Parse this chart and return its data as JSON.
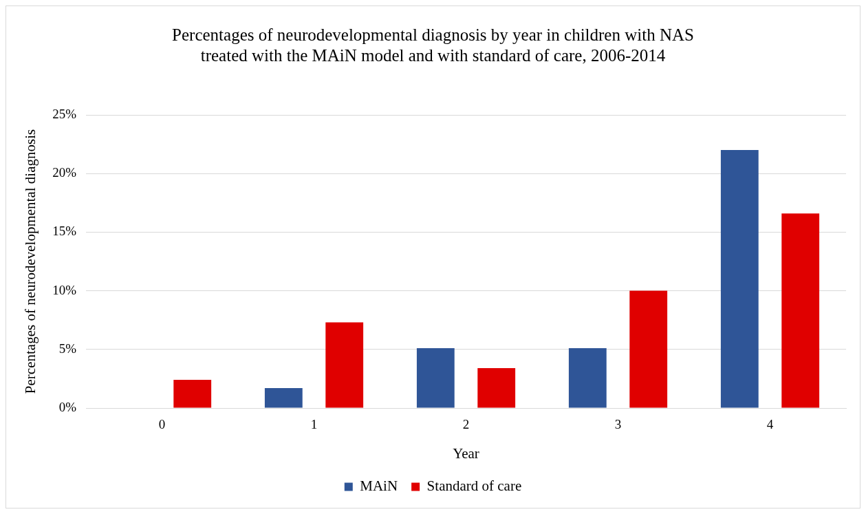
{
  "chart_data": {
    "type": "bar",
    "title": [
      "Percentages of neurodevelopmental diagnosis by year in children with NAS",
      "treated with the MAiN model and with standard of care, 2006-2014"
    ],
    "xlabel": "Year",
    "ylabel": "Percentages of neurodevelopmental diagnosis",
    "categories": [
      "0",
      "1",
      "2",
      "3",
      "4"
    ],
    "series": [
      {
        "name": "MAiN",
        "color": "#2f5597",
        "values": [
          0,
          1.7,
          5.1,
          5.1,
          22.0
        ]
      },
      {
        "name": "Standard of care",
        "color": "#e00000",
        "values": [
          2.4,
          7.3,
          3.4,
          10.0,
          16.6
        ]
      }
    ],
    "ylim": [
      0,
      25
    ],
    "yticks": [
      {
        "value": 0,
        "label": "0%"
      },
      {
        "value": 5,
        "label": "5%"
      },
      {
        "value": 10,
        "label": "10%"
      },
      {
        "value": 15,
        "label": "15%"
      },
      {
        "value": 20,
        "label": "20%"
      },
      {
        "value": 25,
        "label": "25%"
      }
    ],
    "grid": "y",
    "legend": "bottom"
  }
}
